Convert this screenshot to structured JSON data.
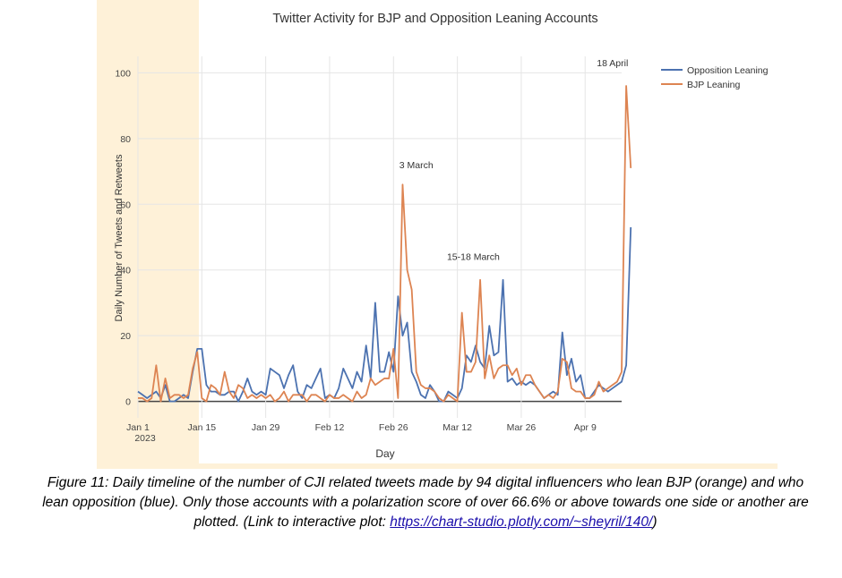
{
  "colors": {
    "opposition": "#4c72b0",
    "bjp": "#dd8452",
    "grid": "#e5e5e5",
    "zeroline": "#444444",
    "frame": "#fef1d8"
  },
  "chart_data": {
    "type": "line",
    "title": "Twitter Activity for BJP and Opposition Leaning Accounts",
    "xlabel": "Day",
    "ylabel": "Daily Number of Tweets and Retweets",
    "ylim": [
      -5,
      105
    ],
    "xlim": [
      0,
      106
    ],
    "grid": true,
    "legend_position": "top-right",
    "y_ticks": [
      0,
      20,
      40,
      60,
      80,
      100
    ],
    "x_ticks": [
      {
        "day": 0,
        "label": "Jan 1",
        "sublabel": "2023"
      },
      {
        "day": 14,
        "label": "Jan 15",
        "sublabel": ""
      },
      {
        "day": 28,
        "label": "Jan 29",
        "sublabel": ""
      },
      {
        "day": 42,
        "label": "Feb 12",
        "sublabel": ""
      },
      {
        "day": 56,
        "label": "Feb 26",
        "sublabel": ""
      },
      {
        "day": 70,
        "label": "Mar 12",
        "sublabel": ""
      },
      {
        "day": 84,
        "label": "Mar 26",
        "sublabel": ""
      },
      {
        "day": 98,
        "label": "Apr 9",
        "sublabel": ""
      }
    ],
    "annotations": [
      {
        "text": "3 March",
        "day": 61,
        "y": 71
      },
      {
        "text": "15-18 March",
        "day": 73.5,
        "y": 43
      },
      {
        "text": "18 April",
        "day": 104,
        "y": 102
      }
    ],
    "series": [
      {
        "name": "Opposition Leaning",
        "color_key": "opposition",
        "values": [
          3,
          2,
          1,
          2,
          3,
          1,
          5,
          0,
          0,
          1,
          2,
          1,
          9,
          16,
          16,
          5,
          3,
          3,
          2,
          2,
          3,
          3,
          0,
          3,
          7,
          3,
          2,
          3,
          2,
          10,
          9,
          8,
          4,
          8,
          11,
          3,
          1,
          5,
          4,
          7,
          10,
          1,
          2,
          1,
          4,
          10,
          7,
          4,
          9,
          6,
          17,
          7,
          30,
          9,
          9,
          15,
          9,
          32,
          20,
          24,
          9,
          6,
          2,
          1,
          5,
          3,
          0,
          0,
          3,
          2,
          1,
          4,
          14,
          12,
          17,
          12,
          10,
          23,
          14,
          15,
          37,
          6,
          7,
          5,
          6,
          5,
          6,
          5,
          3,
          1,
          2,
          3,
          2,
          21,
          8,
          13,
          6,
          8,
          1,
          1,
          3,
          5,
          4,
          3,
          4,
          5,
          6,
          11,
          53
        ]
      },
      {
        "name": "BJP Leaning",
        "color_key": "bjp",
        "values": [
          1,
          1,
          0,
          1,
          11,
          0,
          7,
          1,
          2,
          2,
          1,
          2,
          10,
          15,
          1,
          0,
          5,
          4,
          2,
          9,
          3,
          1,
          5,
          4,
          1,
          2,
          1,
          2,
          1,
          2,
          0,
          1,
          3,
          0,
          2,
          2,
          2,
          0,
          2,
          2,
          1,
          0,
          2,
          1,
          1,
          2,
          1,
          0,
          3,
          1,
          2,
          7,
          5,
          6,
          7,
          7,
          16,
          1,
          66,
          40,
          34,
          9,
          5,
          4,
          4,
          3,
          1,
          0,
          2,
          1,
          0,
          27,
          9,
          9,
          12,
          37,
          7,
          14,
          7,
          10,
          11,
          11,
          8,
          10,
          5,
          8,
          8,
          5,
          3,
          1,
          2,
          1,
          3,
          13,
          12,
          4,
          3,
          3,
          1,
          1,
          2,
          6,
          3,
          4,
          5,
          6,
          9,
          96,
          71
        ]
      }
    ]
  },
  "caption": {
    "text": "Figure 11: Daily timeline of the number of CJI related tweets made by 94 digital influencers who lean BJP (orange) and who lean opposition (blue). Only those accounts with a polarization score of over 66.6% or above towards one side or another are plotted. (Link to interactive plot: ",
    "link": "https://chart-studio.plotly.com/~sheyril/140/",
    "close": ")"
  }
}
